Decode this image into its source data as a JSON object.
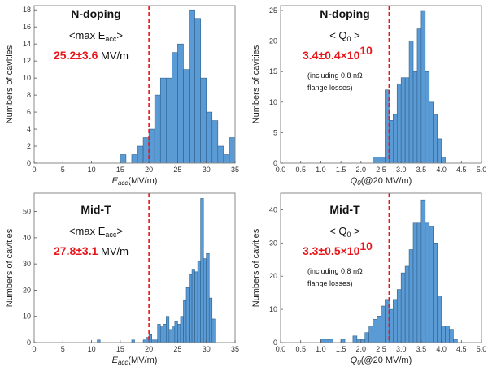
{
  "colors": {
    "bar_fill": "#5b9bd5",
    "bar_stroke": "#2e5f8a",
    "threshold_line": "#e8161b",
    "highlight_text": "#e8161b",
    "frame": "#888888"
  },
  "chart_data": [
    {
      "id": "ndoping-eacc",
      "type": "bar",
      "title": "N-doping",
      "subtitle": "<max E",
      "subtitle_sub": "acc",
      "subtitle_end": ">",
      "highlight": "25.2±3.6",
      "highlight_unit": " MV/m",
      "note_lines": [],
      "xlabel": "E",
      "xlabel_sub": "acc",
      "xlabel_end": "(MV/m)",
      "ylabel": "Numbers of cavities",
      "xlim": [
        0,
        35
      ],
      "ylim": [
        0,
        18.5
      ],
      "xticks": [
        0,
        5,
        10,
        15,
        20,
        25,
        30,
        35
      ],
      "xtick_labels": [
        "0",
        "5",
        "10",
        "15",
        "20",
        "25",
        "30",
        "35"
      ],
      "yticks": [
        0,
        2,
        4,
        6,
        8,
        10,
        12,
        14,
        16,
        18
      ],
      "bin_width": 1,
      "bins": [
        [
          15,
          1
        ],
        [
          17,
          1
        ],
        [
          18,
          2
        ],
        [
          19,
          3
        ],
        [
          20,
          4
        ],
        [
          21,
          8
        ],
        [
          22,
          10
        ],
        [
          23,
          10
        ],
        [
          24,
          13
        ],
        [
          25,
          14
        ],
        [
          26,
          11
        ],
        [
          27,
          18
        ],
        [
          28,
          17
        ],
        [
          29,
          10
        ],
        [
          30,
          6
        ],
        [
          31,
          5
        ],
        [
          32,
          2
        ],
        [
          33,
          1
        ],
        [
          34,
          3
        ]
      ],
      "threshold": 20
    },
    {
      "id": "ndoping-q0",
      "type": "bar",
      "title": "N-doping",
      "subtitle": "< Q",
      "subtitle_sub": "0",
      "subtitle_end": " >",
      "highlight": "3.4±0.4×10",
      "highlight_sup": "10",
      "highlight_unit": "",
      "note_lines": [
        "(including 0.8 nΩ",
        "flange losses)"
      ],
      "xlabel": "Q",
      "xlabel_sub": "0",
      "xlabel_end": "(@20 MV/m)",
      "ylabel": "Numbers of cavities",
      "xlim": [
        0,
        5
      ],
      "ylim": [
        0,
        25.8
      ],
      "xticks": [
        0,
        0.5,
        1,
        1.5,
        2,
        2.5,
        3,
        3.5,
        4,
        4.5,
        5
      ],
      "xtick_labels": [
        "0.0",
        "0.5",
        "1.0",
        "1.5",
        "2.0",
        "2.5",
        "3.0",
        "3.5",
        "4.0",
        "4.5",
        "5.0"
      ],
      "yticks": [
        0,
        5,
        10,
        15,
        20,
        25
      ],
      "bin_width": 0.1,
      "bins": [
        [
          2.3,
          1
        ],
        [
          2.4,
          1
        ],
        [
          2.5,
          1
        ],
        [
          2.6,
          12
        ],
        [
          2.7,
          7
        ],
        [
          2.8,
          8
        ],
        [
          2.9,
          13
        ],
        [
          3.0,
          14
        ],
        [
          3.1,
          14
        ],
        [
          3.2,
          20
        ],
        [
          3.3,
          15
        ],
        [
          3.4,
          22
        ],
        [
          3.5,
          25
        ],
        [
          3.6,
          15
        ],
        [
          3.7,
          10
        ],
        [
          3.8,
          8
        ],
        [
          3.9,
          4
        ],
        [
          4.0,
          1
        ]
      ],
      "threshold": 2.7
    },
    {
      "id": "midt-eacc",
      "type": "bar",
      "title": "Mid-T",
      "subtitle": "<max E",
      "subtitle_sub": "acc",
      "subtitle_end": ">",
      "highlight": "27.8±3.1",
      "highlight_unit": " MV/m",
      "note_lines": [],
      "xlabel": "E",
      "xlabel_sub": "acc",
      "xlabel_end": "(MV/m)",
      "ylabel": "Numbers of cavities",
      "xlim": [
        0,
        35
      ],
      "ylim": [
        0,
        57
      ],
      "xticks": [
        0,
        5,
        10,
        15,
        20,
        25,
        30,
        35
      ],
      "xtick_labels": [
        "0",
        "5",
        "10",
        "15",
        "20",
        "25",
        "30",
        "35"
      ],
      "yticks": [
        0,
        10,
        20,
        30,
        40,
        50
      ],
      "bin_width": 0.5,
      "bins": [
        [
          11,
          1
        ],
        [
          17,
          1
        ],
        [
          19,
          1
        ],
        [
          19.5,
          2
        ],
        [
          20,
          3
        ],
        [
          20.5,
          1
        ],
        [
          21,
          1
        ],
        [
          21.5,
          7
        ],
        [
          22,
          6
        ],
        [
          22.5,
          7
        ],
        [
          23,
          10
        ],
        [
          23.5,
          5
        ],
        [
          24,
          6
        ],
        [
          24.5,
          8
        ],
        [
          25,
          7
        ],
        [
          25.5,
          10
        ],
        [
          26,
          16
        ],
        [
          26.5,
          21
        ],
        [
          27,
          26
        ],
        [
          27.5,
          28
        ],
        [
          28,
          27
        ],
        [
          28.5,
          31
        ],
        [
          29,
          55
        ],
        [
          29.5,
          32
        ],
        [
          30,
          34
        ],
        [
          30.5,
          17
        ],
        [
          31,
          9
        ]
      ],
      "threshold": 20
    },
    {
      "id": "midt-q0",
      "type": "bar",
      "title": "Mid-T",
      "subtitle": "< Q",
      "subtitle_sub": "0",
      "subtitle_end": " >",
      "highlight": "3.3±0.5×10",
      "highlight_sup": "10",
      "highlight_unit": "",
      "note_lines": [
        "(including 0.8 nΩ",
        "flange losses)"
      ],
      "xlabel": "Q",
      "xlabel_sub": "0",
      "xlabel_end": "(@20 MV/m)",
      "ylabel": "Numbers of cavities",
      "xlim": [
        0,
        5
      ],
      "ylim": [
        0,
        45
      ],
      "xticks": [
        0,
        0.5,
        1,
        1.5,
        2,
        2.5,
        3,
        3.5,
        4,
        4.5,
        5
      ],
      "xtick_labels": [
        "0.0",
        "0.5",
        "1.0",
        "1.5",
        "2.0",
        "2.5",
        "3.0",
        "3.5",
        "4.0",
        "4.5",
        "5.0"
      ],
      "yticks": [
        0,
        10,
        20,
        30,
        40
      ],
      "bin_width": 0.1,
      "bins": [
        [
          1.0,
          1
        ],
        [
          1.1,
          1
        ],
        [
          1.2,
          1
        ],
        [
          1.5,
          1
        ],
        [
          1.8,
          2
        ],
        [
          1.9,
          1
        ],
        [
          2.0,
          1
        ],
        [
          2.1,
          3
        ],
        [
          2.2,
          5
        ],
        [
          2.3,
          7
        ],
        [
          2.4,
          8
        ],
        [
          2.5,
          11
        ],
        [
          2.6,
          13
        ],
        [
          2.7,
          10
        ],
        [
          2.8,
          13
        ],
        [
          2.9,
          16
        ],
        [
          3.0,
          21
        ],
        [
          3.1,
          23
        ],
        [
          3.2,
          28
        ],
        [
          3.3,
          36
        ],
        [
          3.4,
          36
        ],
        [
          3.5,
          43
        ],
        [
          3.6,
          36
        ],
        [
          3.7,
          35
        ],
        [
          3.8,
          30
        ],
        [
          3.9,
          14
        ],
        [
          4.0,
          5
        ],
        [
          4.1,
          5
        ],
        [
          4.2,
          4
        ],
        [
          4.3,
          1
        ]
      ],
      "threshold": 2.7
    }
  ]
}
